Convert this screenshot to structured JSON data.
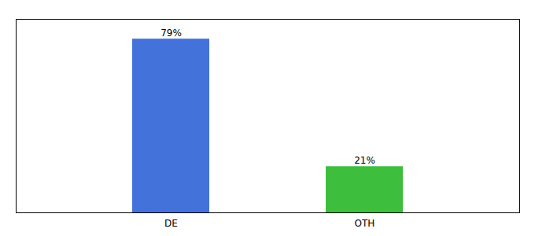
{
  "chart_data": {
    "type": "bar",
    "categories": [
      "DE",
      "OTH"
    ],
    "values": [
      79,
      21
    ],
    "value_labels": [
      "79%",
      "21%"
    ],
    "colors": [
      "#4472db",
      "#3dbf3d"
    ],
    "ylim": [
      0,
      88
    ],
    "data_labels": true,
    "tick_labels": "x"
  }
}
